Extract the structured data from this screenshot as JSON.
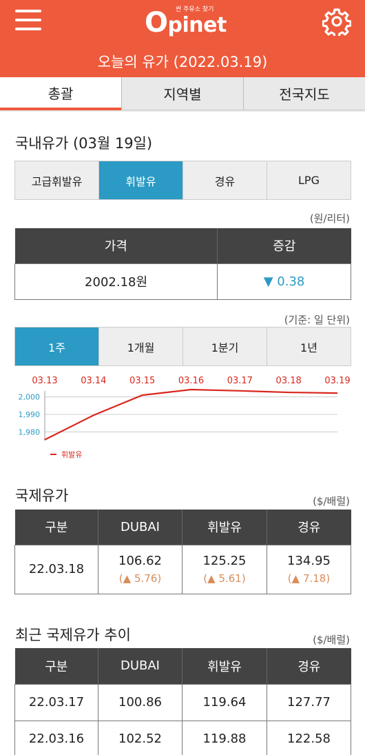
{
  "header": {
    "logo_sub": "싼 주유소 찾기",
    "logo_main_o": "O",
    "logo_main_rest": "pinet",
    "title": "오늘의 유가 (2022.03.19)",
    "menu_icon": "hamburger-menu-icon",
    "settings_icon": "gear-icon"
  },
  "tabs": [
    {
      "label": "총괄",
      "active": true
    },
    {
      "label": "지역별",
      "active": false
    },
    {
      "label": "전국지도",
      "active": false
    }
  ],
  "domestic": {
    "title": "국내유가 (03월 19일)",
    "fuel_types": [
      "고급휘발유",
      "휘발유",
      "경유",
      "LPG"
    ],
    "selected_fuel": "휘발유",
    "unit": "(원/리터)",
    "table": {
      "headers": [
        "가격",
        "증감"
      ],
      "price": "2002.18원",
      "change": "▼ 0.38"
    }
  },
  "period": {
    "unit": "(기준: 일 단위)",
    "options": [
      "1주",
      "1개월",
      "1분기",
      "1년"
    ],
    "selected": "1주"
  },
  "chart_data": {
    "type": "line",
    "x": [
      "03.13",
      "03.14",
      "03.15",
      "03.16",
      "03.17",
      "03.18",
      "03.19"
    ],
    "series": [
      {
        "name": "휘발유",
        "values": [
          1975.5,
          1989.5,
          2001.0,
          2004.2,
          2003.5,
          2002.6,
          2002.18
        ],
        "color": "#d9261c"
      }
    ],
    "y_ticks": [
      "2,000",
      "1,990",
      "1,980"
    ],
    "ylim": [
      1975,
      2005
    ],
    "grid": true,
    "legend": "bottom-left",
    "x_label_color": "#d9261c",
    "y_label_color": "#2b9ac4"
  },
  "international": {
    "title": "국제유가",
    "unit": "($/배럴)",
    "headers": [
      "구분",
      "DUBAI",
      "휘발유",
      "경유"
    ],
    "row": {
      "date": "22.03.18",
      "values": [
        "106.62",
        "125.25",
        "134.95"
      ],
      "changes": [
        "(▲ 5.76)",
        "(▲ 5.61)",
        "(▲ 7.18)"
      ]
    }
  },
  "recent": {
    "title": "최근 국제유가 추이",
    "unit": "($/배럴)",
    "headers": [
      "구분",
      "DUBAI",
      "휘발유",
      "경유"
    ],
    "rows": [
      [
        "22.03.17",
        "100.86",
        "119.64",
        "127.77"
      ],
      [
        "22.03.16",
        "102.52",
        "119.88",
        "122.58"
      ]
    ]
  },
  "colors": {
    "brand": "#ee5a3c",
    "accent": "#2b9ac4",
    "table_header": "#434343"
  }
}
